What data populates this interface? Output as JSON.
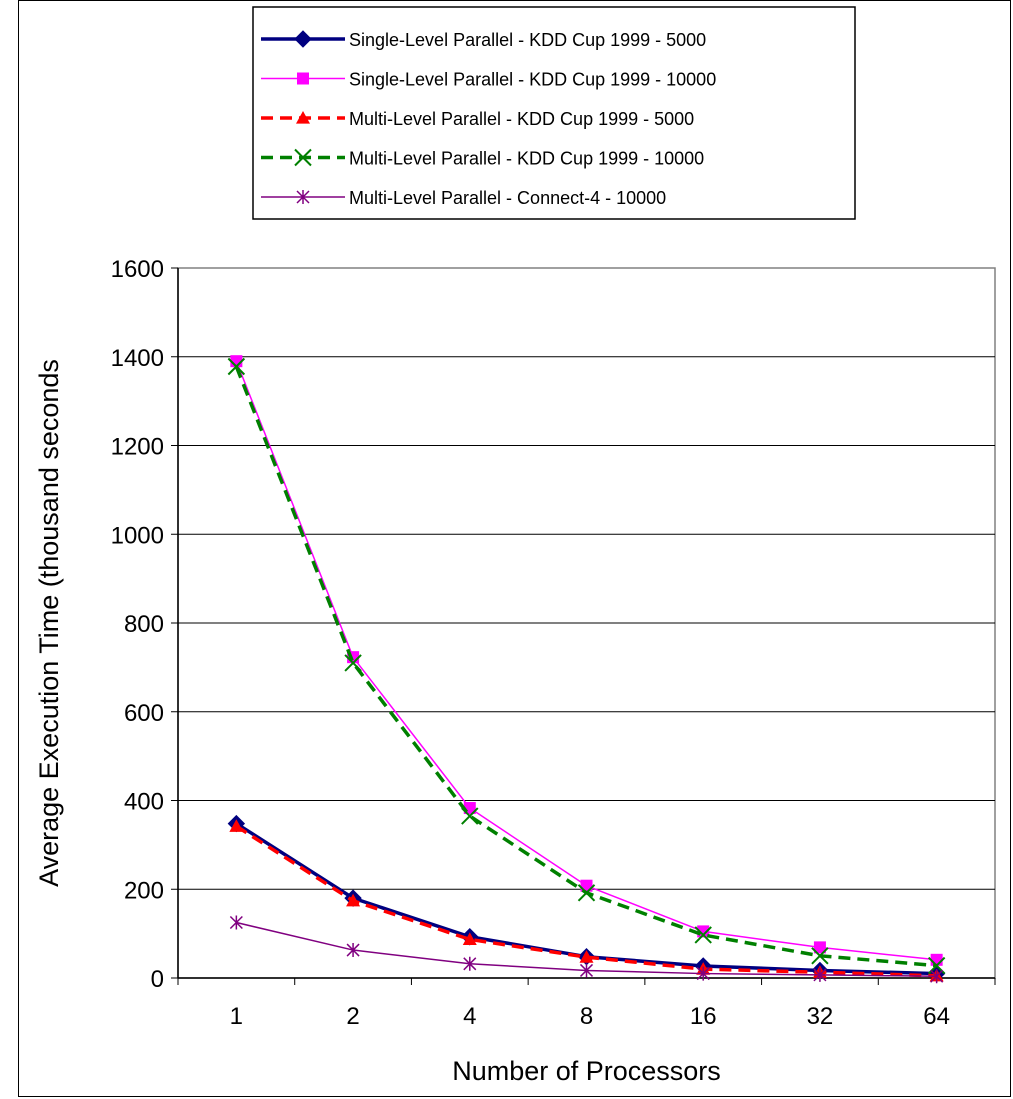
{
  "chart_data": {
    "type": "line",
    "title": "",
    "xlabel": "Number of Processors",
    "ylabel": "Average Execution Time (thousand seconds",
    "categories": [
      "1",
      "2",
      "4",
      "8",
      "16",
      "32",
      "64"
    ],
    "ylim": [
      0,
      1600
    ],
    "yticks": [
      0,
      200,
      400,
      600,
      800,
      1000,
      1200,
      1400,
      1600
    ],
    "grid": "horizontal",
    "legend_position": "top",
    "series": [
      {
        "name": "Single-Level Parallel - KDD Cup 1999 - 5000",
        "values": [
          348,
          180,
          93,
          48,
          27,
          17,
          10
        ],
        "color": "#000080",
        "marker": "diamond",
        "dash": "solid",
        "width": "thick"
      },
      {
        "name": "Single-Level Parallel - KDD Cup 1999 - 10000",
        "values": [
          1390,
          723,
          383,
          208,
          105,
          69,
          41
        ],
        "color": "#FF00FF",
        "marker": "square",
        "dash": "solid",
        "width": "thin"
      },
      {
        "name": "Multi-Level Parallel - KDD Cup 1999 - 5000",
        "values": [
          342,
          174,
          87,
          47,
          20,
          13,
          5
        ],
        "color": "#FF0000",
        "marker": "triangle",
        "dash": "dashed",
        "width": "thick"
      },
      {
        "name": "Multi-Level Parallel - KDD Cup 1999 - 10000",
        "values": [
          1378,
          710,
          365,
          192,
          97,
          50,
          28
        ],
        "color": "#008000",
        "marker": "x",
        "dash": "dashed",
        "width": "thick"
      },
      {
        "name": "Multi-Level Parallel - Connect-4 - 10000",
        "values": [
          125,
          63,
          32,
          17,
          10,
          7,
          4
        ],
        "color": "#800080",
        "marker": "star",
        "dash": "solid",
        "width": "thin"
      }
    ]
  }
}
